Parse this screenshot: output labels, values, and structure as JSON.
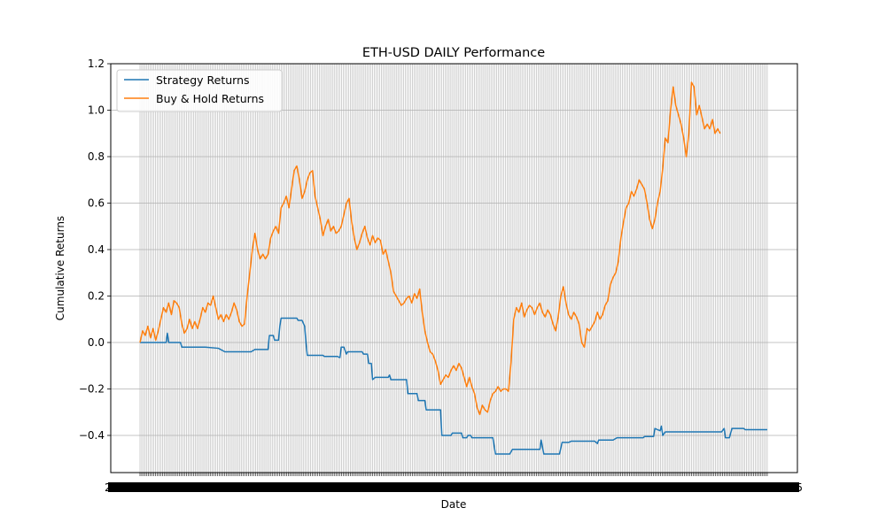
{
  "chart_data": {
    "type": "line",
    "title": "ETH-USD DAILY Performance",
    "xlabel": "Date",
    "ylabel": "Cumulative Returns",
    "ylim": [
      -0.56,
      1.2
    ],
    "y_ticks": [
      -0.4,
      -0.2,
      0.0,
      0.2,
      0.4,
      0.6,
      0.8,
      1.0,
      1.2
    ],
    "y_tick_labels": [
      "−0.4",
      "−0.2",
      "0.0",
      "0.2",
      "0.4",
      "0.6",
      "0.8",
      "1.0",
      "1.2"
    ],
    "grid": true,
    "legend_position": "top-left",
    "x_tick_count": 365,
    "x_edge_labels": [
      "2",
      "5"
    ],
    "series": [
      {
        "name": "Strategy Returns",
        "color": "#1f77b4",
        "points": [
          [
            0,
            0.0
          ],
          [
            20,
            0.0
          ],
          [
            21,
            0.04
          ],
          [
            22,
            0.0
          ],
          [
            31,
            0.0
          ],
          [
            32,
            -0.02
          ],
          [
            50,
            -0.02
          ],
          [
            60,
            -0.025
          ],
          [
            65,
            -0.04
          ],
          [
            85,
            -0.04
          ],
          [
            88,
            -0.03
          ],
          [
            98,
            -0.03
          ],
          [
            99,
            0.03
          ],
          [
            102,
            0.03
          ],
          [
            103,
            0.01
          ],
          [
            106,
            0.01
          ],
          [
            107,
            0.07
          ],
          [
            108,
            0.105
          ],
          [
            120,
            0.105
          ],
          [
            121,
            0.095
          ],
          [
            124,
            0.095
          ],
          [
            126,
            0.07
          ],
          [
            127,
            0.0
          ],
          [
            128,
            -0.055
          ],
          [
            140,
            -0.055
          ],
          [
            141,
            -0.06
          ],
          [
            151,
            -0.06
          ],
          [
            153,
            -0.065
          ],
          [
            154,
            -0.02
          ],
          [
            156,
            -0.02
          ],
          [
            158,
            -0.05
          ],
          [
            159,
            -0.04
          ],
          [
            170,
            -0.04
          ],
          [
            171,
            -0.05
          ],
          [
            174,
            -0.05
          ],
          [
            175,
            -0.09
          ],
          [
            177,
            -0.09
          ],
          [
            178,
            -0.16
          ],
          [
            180,
            -0.15
          ],
          [
            190,
            -0.15
          ],
          [
            191,
            -0.14
          ],
          [
            192,
            -0.16
          ],
          [
            204,
            -0.16
          ],
          [
            205,
            -0.22
          ],
          [
            212,
            -0.22
          ],
          [
            213,
            -0.25
          ],
          [
            218,
            -0.25
          ],
          [
            219,
            -0.29
          ],
          [
            230,
            -0.29
          ],
          [
            231,
            -0.4
          ],
          [
            238,
            -0.4
          ],
          [
            239,
            -0.39
          ],
          [
            246,
            -0.39
          ],
          [
            247,
            -0.41
          ],
          [
            250,
            -0.41
          ],
          [
            251,
            -0.4
          ],
          [
            253,
            -0.4
          ],
          [
            254,
            -0.41
          ],
          [
            270,
            -0.41
          ],
          [
            272,
            -0.48
          ],
          [
            283,
            -0.48
          ],
          [
            285,
            -0.46
          ],
          [
            306,
            -0.46
          ],
          [
            307,
            -0.42
          ],
          [
            309,
            -0.48
          ],
          [
            321,
            -0.48
          ],
          [
            323,
            -0.43
          ],
          [
            328,
            -0.43
          ],
          [
            330,
            -0.425
          ],
          [
            348,
            -0.425
          ],
          [
            350,
            -0.435
          ],
          [
            351,
            -0.42
          ],
          [
            362,
            -0.42
          ],
          [
            365,
            -0.41
          ],
          [
            385,
            -0.41
          ],
          [
            386,
            -0.405
          ],
          [
            393,
            -0.405
          ],
          [
            394,
            -0.37
          ],
          [
            398,
            -0.38
          ],
          [
            399,
            -0.36
          ],
          [
            400,
            -0.4
          ],
          [
            402,
            -0.385
          ],
          [
            445,
            -0.385
          ],
          [
            447,
            -0.37
          ],
          [
            448,
            -0.41
          ],
          [
            451,
            -0.41
          ],
          [
            453,
            -0.37
          ],
          [
            462,
            -0.37
          ],
          [
            463,
            -0.375
          ],
          [
            480,
            -0.375
          ]
        ]
      },
      {
        "name": "Buy & Hold Returns",
        "color": "#ff7f0e",
        "points": [
          [
            0,
            0.0
          ],
          [
            2,
            0.05
          ],
          [
            4,
            0.03
          ],
          [
            6,
            0.07
          ],
          [
            8,
            0.02
          ],
          [
            10,
            0.06
          ],
          [
            12,
            0.01
          ],
          [
            14,
            0.05
          ],
          [
            16,
            0.1
          ],
          [
            18,
            0.15
          ],
          [
            20,
            0.13
          ],
          [
            22,
            0.17
          ],
          [
            24,
            0.12
          ],
          [
            26,
            0.18
          ],
          [
            28,
            0.17
          ],
          [
            30,
            0.15
          ],
          [
            32,
            0.08
          ],
          [
            34,
            0.04
          ],
          [
            36,
            0.06
          ],
          [
            38,
            0.1
          ],
          [
            40,
            0.06
          ],
          [
            42,
            0.09
          ],
          [
            44,
            0.06
          ],
          [
            46,
            0.1
          ],
          [
            48,
            0.15
          ],
          [
            50,
            0.13
          ],
          [
            52,
            0.17
          ],
          [
            54,
            0.16
          ],
          [
            56,
            0.2
          ],
          [
            58,
            0.15
          ],
          [
            60,
            0.1
          ],
          [
            62,
            0.12
          ],
          [
            64,
            0.09
          ],
          [
            66,
            0.12
          ],
          [
            68,
            0.1
          ],
          [
            70,
            0.13
          ],
          [
            72,
            0.17
          ],
          [
            74,
            0.14
          ],
          [
            76,
            0.09
          ],
          [
            78,
            0.07
          ],
          [
            80,
            0.08
          ],
          [
            82,
            0.2
          ],
          [
            84,
            0.3
          ],
          [
            86,
            0.4
          ],
          [
            88,
            0.47
          ],
          [
            90,
            0.4
          ],
          [
            92,
            0.36
          ],
          [
            94,
            0.38
          ],
          [
            96,
            0.36
          ],
          [
            98,
            0.38
          ],
          [
            100,
            0.45
          ],
          [
            102,
            0.48
          ],
          [
            104,
            0.5
          ],
          [
            106,
            0.47
          ],
          [
            108,
            0.58
          ],
          [
            110,
            0.6
          ],
          [
            112,
            0.63
          ],
          [
            114,
            0.58
          ],
          [
            116,
            0.66
          ],
          [
            118,
            0.74
          ],
          [
            120,
            0.76
          ],
          [
            122,
            0.7
          ],
          [
            124,
            0.62
          ],
          [
            126,
            0.65
          ],
          [
            128,
            0.7
          ],
          [
            130,
            0.73
          ],
          [
            132,
            0.74
          ],
          [
            134,
            0.63
          ],
          [
            136,
            0.58
          ],
          [
            138,
            0.53
          ],
          [
            140,
            0.46
          ],
          [
            142,
            0.5
          ],
          [
            144,
            0.53
          ],
          [
            146,
            0.48
          ],
          [
            148,
            0.5
          ],
          [
            150,
            0.47
          ],
          [
            152,
            0.48
          ],
          [
            154,
            0.5
          ],
          [
            156,
            0.55
          ],
          [
            158,
            0.6
          ],
          [
            160,
            0.62
          ],
          [
            162,
            0.52
          ],
          [
            164,
            0.45
          ],
          [
            166,
            0.4
          ],
          [
            168,
            0.43
          ],
          [
            170,
            0.47
          ],
          [
            172,
            0.5
          ],
          [
            174,
            0.45
          ],
          [
            176,
            0.42
          ],
          [
            178,
            0.46
          ],
          [
            180,
            0.43
          ],
          [
            182,
            0.45
          ],
          [
            184,
            0.44
          ],
          [
            186,
            0.38
          ],
          [
            188,
            0.4
          ],
          [
            190,
            0.35
          ],
          [
            192,
            0.3
          ],
          [
            194,
            0.22
          ],
          [
            196,
            0.2
          ],
          [
            198,
            0.18
          ],
          [
            200,
            0.16
          ],
          [
            202,
            0.17
          ],
          [
            204,
            0.19
          ],
          [
            206,
            0.2
          ],
          [
            208,
            0.17
          ],
          [
            210,
            0.21
          ],
          [
            212,
            0.19
          ],
          [
            214,
            0.23
          ],
          [
            216,
            0.13
          ],
          [
            218,
            0.05
          ],
          [
            220,
            0.0
          ],
          [
            222,
            -0.04
          ],
          [
            224,
            -0.05
          ],
          [
            226,
            -0.08
          ],
          [
            228,
            -0.12
          ],
          [
            230,
            -0.18
          ],
          [
            232,
            -0.16
          ],
          [
            234,
            -0.14
          ],
          [
            236,
            -0.15
          ],
          [
            238,
            -0.12
          ],
          [
            240,
            -0.1
          ],
          [
            242,
            -0.12
          ],
          [
            244,
            -0.09
          ],
          [
            246,
            -0.11
          ],
          [
            248,
            -0.15
          ],
          [
            250,
            -0.19
          ],
          [
            252,
            -0.15
          ],
          [
            254,
            -0.19
          ],
          [
            256,
            -0.22
          ],
          [
            258,
            -0.28
          ],
          [
            260,
            -0.31
          ],
          [
            262,
            -0.27
          ],
          [
            264,
            -0.29
          ],
          [
            266,
            -0.3
          ],
          [
            268,
            -0.25
          ],
          [
            270,
            -0.22
          ],
          [
            272,
            -0.21
          ],
          [
            274,
            -0.19
          ],
          [
            276,
            -0.21
          ],
          [
            278,
            -0.2
          ],
          [
            280,
            -0.2
          ],
          [
            282,
            -0.21
          ],
          [
            284,
            -0.08
          ],
          [
            286,
            0.1
          ],
          [
            288,
            0.15
          ],
          [
            290,
            0.13
          ],
          [
            292,
            0.17
          ],
          [
            294,
            0.11
          ],
          [
            296,
            0.14
          ],
          [
            298,
            0.16
          ],
          [
            300,
            0.15
          ],
          [
            302,
            0.12
          ],
          [
            304,
            0.15
          ],
          [
            306,
            0.17
          ],
          [
            308,
            0.13
          ],
          [
            310,
            0.11
          ],
          [
            312,
            0.14
          ],
          [
            314,
            0.12
          ],
          [
            316,
            0.08
          ],
          [
            318,
            0.05
          ],
          [
            320,
            0.11
          ],
          [
            322,
            0.2
          ],
          [
            324,
            0.24
          ],
          [
            326,
            0.17
          ],
          [
            328,
            0.12
          ],
          [
            330,
            0.1
          ],
          [
            332,
            0.13
          ],
          [
            334,
            0.11
          ],
          [
            336,
            0.08
          ],
          [
            338,
            0.0
          ],
          [
            340,
            -0.02
          ],
          [
            342,
            0.06
          ],
          [
            344,
            0.05
          ],
          [
            346,
            0.07
          ],
          [
            348,
            0.09
          ],
          [
            350,
            0.13
          ],
          [
            352,
            0.1
          ],
          [
            354,
            0.12
          ],
          [
            356,
            0.16
          ],
          [
            358,
            0.18
          ],
          [
            360,
            0.25
          ],
          [
            362,
            0.28
          ],
          [
            364,
            0.3
          ],
          [
            366,
            0.35
          ],
          [
            368,
            0.45
          ],
          [
            370,
            0.52
          ],
          [
            372,
            0.58
          ],
          [
            374,
            0.6
          ],
          [
            376,
            0.65
          ],
          [
            378,
            0.63
          ],
          [
            380,
            0.66
          ],
          [
            382,
            0.7
          ],
          [
            384,
            0.68
          ],
          [
            386,
            0.66
          ],
          [
            388,
            0.6
          ],
          [
            390,
            0.53
          ],
          [
            392,
            0.49
          ],
          [
            394,
            0.53
          ],
          [
            396,
            0.6
          ],
          [
            398,
            0.65
          ],
          [
            400,
            0.75
          ],
          [
            402,
            0.88
          ],
          [
            404,
            0.86
          ],
          [
            406,
            1.0
          ],
          [
            408,
            1.1
          ],
          [
            410,
            1.02
          ],
          [
            412,
            0.98
          ],
          [
            414,
            0.94
          ],
          [
            416,
            0.88
          ],
          [
            418,
            0.8
          ],
          [
            420,
            0.9
          ],
          [
            422,
            1.12
          ],
          [
            424,
            1.1
          ],
          [
            426,
            0.98
          ],
          [
            428,
            1.02
          ],
          [
            430,
            0.97
          ],
          [
            432,
            0.92
          ],
          [
            434,
            0.94
          ],
          [
            436,
            0.92
          ],
          [
            438,
            0.96
          ],
          [
            440,
            0.9
          ],
          [
            442,
            0.92
          ],
          [
            444,
            0.9
          ]
        ]
      }
    ]
  }
}
